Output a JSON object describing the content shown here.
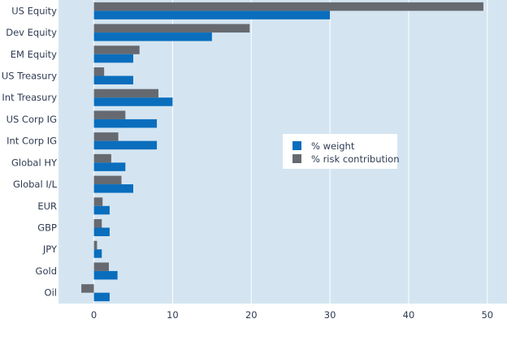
{
  "chart_data": {
    "type": "bar",
    "orientation": "horizontal",
    "categories": [
      "US Equity",
      "Dev Equity",
      "EM Equity",
      "US Treasury",
      "Int Treasury",
      "US Corp IG",
      "Int Corp IG",
      "Global HY",
      "Global I/L",
      "EUR",
      "GBP",
      "JPY",
      "Gold",
      "Oil"
    ],
    "series": [
      {
        "name": "% weight",
        "color": "#0a6ebd",
        "values": [
          30,
          15,
          5,
          5,
          10,
          8,
          8,
          4,
          5,
          2,
          2,
          1,
          3,
          2
        ]
      },
      {
        "name": "% risk contribution",
        "color": "#666a70",
        "values": [
          49.5,
          19.8,
          5.8,
          1.3,
          8.2,
          4.0,
          3.1,
          2.2,
          3.5,
          1.1,
          1.0,
          0.4,
          1.9,
          -1.6
        ]
      }
    ],
    "x_ticks": [
      0,
      10,
      20,
      30,
      40,
      50
    ],
    "xlim": [
      -4.5,
      52.5
    ],
    "title": "",
    "xlabel": "",
    "ylabel": "",
    "grid": "vertical",
    "legend_position": "center-right",
    "plot_background": "#d4e5f1"
  }
}
